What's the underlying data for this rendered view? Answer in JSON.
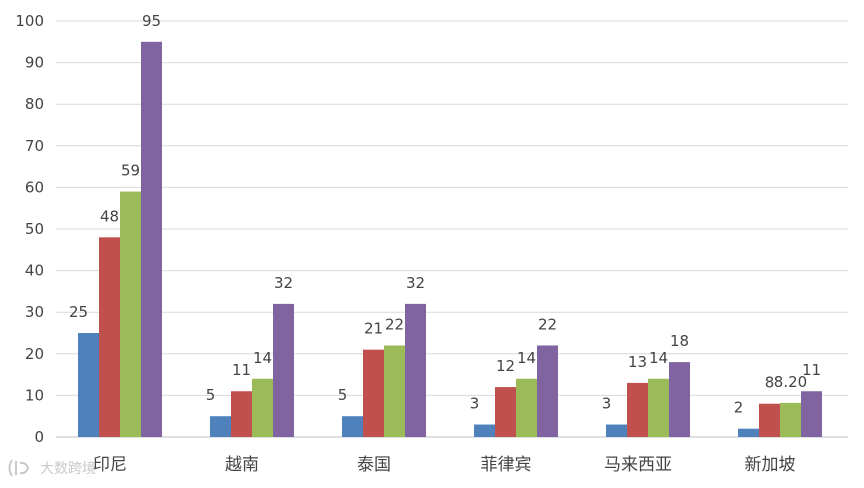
{
  "chart_data": {
    "type": "bar",
    "categories": [
      "印尼",
      "越南",
      "泰国",
      "菲律宾",
      "马来西亚",
      "新加坡"
    ],
    "series": [
      {
        "values": [
          25,
          5,
          5,
          3,
          3,
          2
        ],
        "labels": [
          "25",
          "5",
          "5",
          "3",
          "3",
          "2"
        ],
        "color": "#4f81bd"
      },
      {
        "values": [
          48,
          11,
          21,
          12,
          13,
          8
        ],
        "labels": [
          "48",
          "11",
          "21",
          "12",
          "13",
          "8"
        ],
        "color": "#c0504d"
      },
      {
        "values": [
          59,
          14,
          22,
          14,
          14,
          8.2
        ],
        "labels": [
          "59",
          "14",
          "22",
          "14",
          "14",
          "8.20"
        ],
        "color": "#9bbb59"
      },
      {
        "values": [
          95,
          32,
          32,
          22,
          18,
          11
        ],
        "labels": [
          "95",
          "32",
          "32",
          "22",
          "18",
          "11"
        ],
        "color": "#8064a2"
      }
    ],
    "yticks": [
      "0",
      "10",
      "20",
      "30",
      "40",
      "50",
      "60",
      "70",
      "80",
      "90",
      "100"
    ],
    "ylim": [
      0,
      100
    ],
    "grid": true,
    "legend": "none"
  },
  "watermark": {
    "text": "大数跨境",
    "icon": "watermark-logo-icon"
  }
}
